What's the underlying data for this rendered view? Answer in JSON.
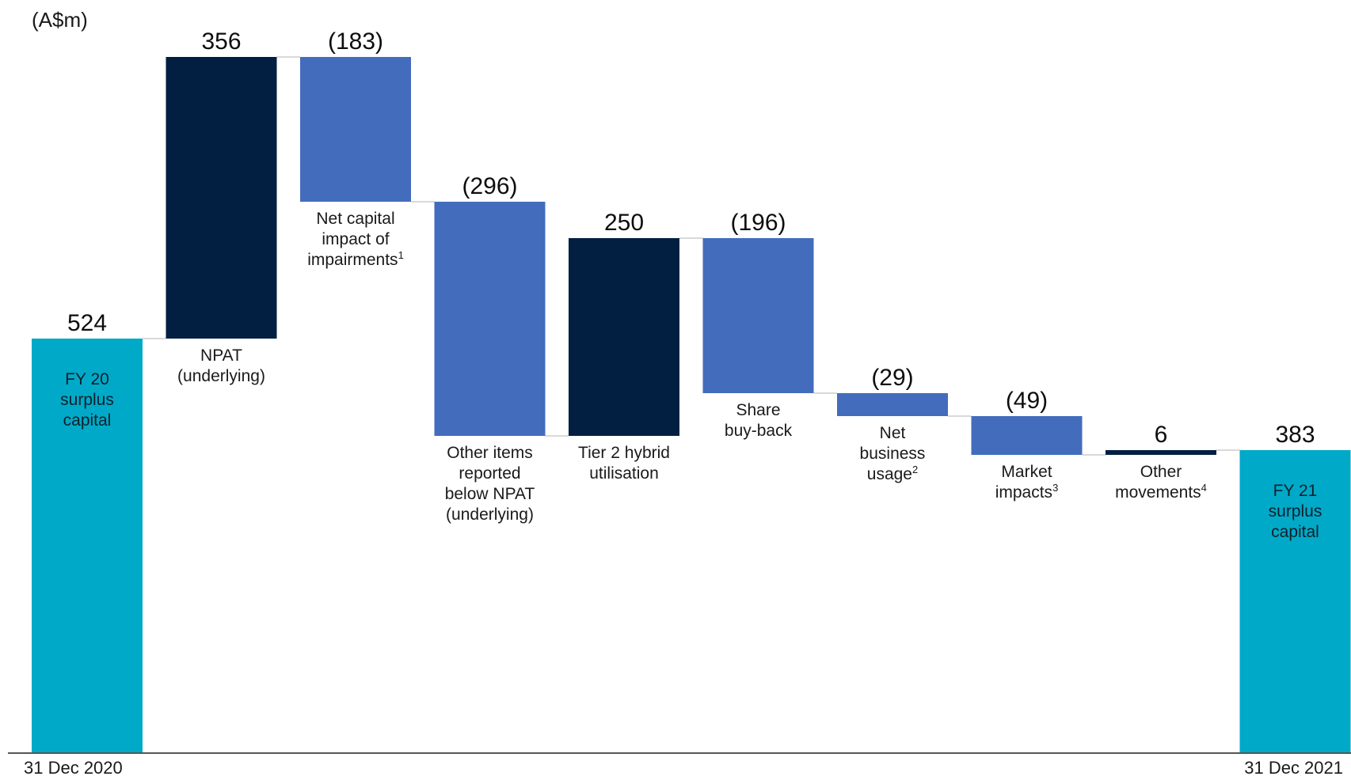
{
  "chart_data": {
    "type": "waterfall",
    "unit_label": "(A$m)",
    "start_date": "31 Dec 2020",
    "end_date": "31 Dec 2021",
    "colors": {
      "total": "#00a9c8",
      "increase": "#021f41",
      "decrease": "#436cbc",
      "connector": "#d9d9d9",
      "axis": "#555555"
    },
    "steps": [
      {
        "kind": "total",
        "value": 524,
        "value_label": "524",
        "label": [
          "FY 20",
          "surplus",
          "capital"
        ],
        "label_inside": true
      },
      {
        "kind": "delta",
        "value": 356,
        "value_label": "356",
        "label": [
          "NPAT",
          "(underlying)"
        ]
      },
      {
        "kind": "delta",
        "value": -183,
        "value_label": "(183)",
        "label": [
          "Net capital",
          "impact of",
          "impairments"
        ],
        "sup": "1"
      },
      {
        "kind": "delta",
        "value": -296,
        "value_label": "(296)",
        "label": [
          "Other items",
          "reported",
          "below NPAT",
          "(underlying)"
        ]
      },
      {
        "kind": "delta",
        "value": 250,
        "value_label": "250",
        "label": [
          "Tier 2 hybrid",
          "utilisation"
        ]
      },
      {
        "kind": "delta",
        "value": -196,
        "value_label": "(196)",
        "label": [
          "Share",
          "buy-back"
        ]
      },
      {
        "kind": "delta",
        "value": -29,
        "value_label": "(29)",
        "label": [
          "Net",
          "business",
          "usage"
        ],
        "sup": "2"
      },
      {
        "kind": "delta",
        "value": -49,
        "value_label": "(49)",
        "label": [
          "Market",
          "impacts"
        ],
        "sup": "3"
      },
      {
        "kind": "delta",
        "value": 6,
        "value_label": "6",
        "label": [
          "Other",
          "movements"
        ],
        "sup": "4"
      },
      {
        "kind": "total",
        "value": 383,
        "value_label": "383",
        "label": [
          "FY 21",
          "surplus",
          "capital"
        ],
        "label_inside": true
      }
    ]
  }
}
